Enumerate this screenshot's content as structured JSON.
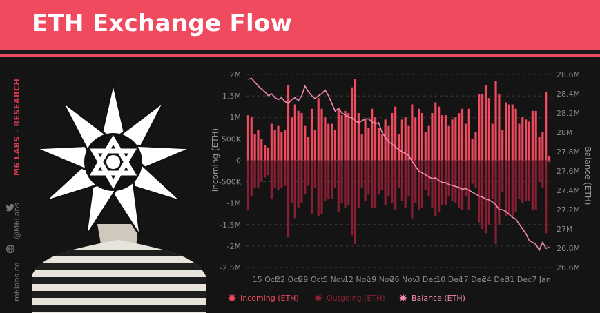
{
  "header": {
    "title": "ETH Exchange Flow"
  },
  "sidebar": {
    "brand": "M6 LABS - RESEARCH",
    "twitter_handle": "@M6Labs",
    "website": "m6labs.co"
  },
  "photo": {
    "icon": "star-mask-portrait"
  },
  "chart_data": {
    "type": "bar",
    "x_ticks": [
      "15 Oct",
      "22 Oct",
      "29 Oct",
      "5 Nov",
      "12 Nov",
      "19 Nov",
      "26 Nov",
      "3 Dec",
      "10 Dec",
      "17 Dec",
      "24 Dec",
      "31 Dec",
      "7 Jan"
    ],
    "y_left": {
      "title": "Incoming (ETH)",
      "min": -2500000,
      "max": 2000000,
      "ticks": [
        {
          "value": 2000000,
          "label": "2M"
        },
        {
          "value": 1500000,
          "label": "1.5M"
        },
        {
          "value": 1000000,
          "label": "1M"
        },
        {
          "value": 500000,
          "label": "500K"
        },
        {
          "value": 0,
          "label": "0"
        },
        {
          "value": -500000,
          "label": "-500K"
        },
        {
          "value": -1000000,
          "label": "-1M"
        },
        {
          "value": -1500000,
          "label": "-1.5M"
        },
        {
          "value": -2000000,
          "label": "-2M"
        },
        {
          "value": -2500000,
          "label": "-2.5M"
        }
      ]
    },
    "y_right": {
      "title": "Balance (ETH)",
      "min": 26600000,
      "max": 28600000,
      "ticks": [
        {
          "value": 28600000,
          "label": "28.6M"
        },
        {
          "value": 28400000,
          "label": "28.4M"
        },
        {
          "value": 28200000,
          "label": "28.2M"
        },
        {
          "value": 28000000,
          "label": "28M"
        },
        {
          "value": 27800000,
          "label": "27.8M"
        },
        {
          "value": 27600000,
          "label": "27.6M"
        },
        {
          "value": 27400000,
          "label": "27.4M"
        },
        {
          "value": 27200000,
          "label": "27.2M"
        },
        {
          "value": 27000000,
          "label": "27M"
        },
        {
          "value": 26800000,
          "label": "26.8M"
        },
        {
          "value": 26600000,
          "label": "26.6M"
        }
      ]
    },
    "grid": "horizontal-dashed",
    "legend_position": "bottom",
    "series": [
      {
        "name": "Incoming (ETH)",
        "color": "#f04a5f",
        "kind": "bar",
        "values": [
          1050000,
          1000000,
          600000,
          700000,
          500000,
          350000,
          300000,
          850000,
          700000,
          800000,
          650000,
          700000,
          1750000,
          1000000,
          1300000,
          1150000,
          1100000,
          800000,
          550000,
          1200000,
          700000,
          1450000,
          1200000,
          1000000,
          850000,
          850000,
          700000,
          1200000,
          1050000,
          1150000,
          1100000,
          1700000,
          1900000,
          1100000,
          600000,
          950000,
          750000,
          1200000,
          1000000,
          750000,
          600000,
          950000,
          800000,
          1100000,
          1250000,
          600000,
          950000,
          1000000,
          800000,
          1300000,
          1000000,
          1200000,
          1100000,
          650000,
          800000,
          1100000,
          1350000,
          1250000,
          1050000,
          1050000,
          800000,
          950000,
          1000000,
          1100000,
          1200000,
          850000,
          1200000,
          500000,
          650000,
          1550000,
          1550000,
          1750000,
          1450000,
          850000,
          1850000,
          1550000,
          700000,
          1350000,
          1300000,
          1300000,
          1200000,
          850000,
          1000000,
          950000,
          900000,
          1150000,
          1150000,
          550000,
          650000,
          1600000,
          100000
        ]
      },
      {
        "name": "Outgoing (ETH)",
        "color": "#8a1f33",
        "kind": "bar",
        "values": [
          -1150000,
          -850000,
          -650000,
          -650000,
          -500000,
          -400000,
          -350000,
          -900000,
          -650000,
          -700000,
          -650000,
          -600000,
          -1800000,
          -1000000,
          -1350000,
          -1100000,
          -1000000,
          -800000,
          -600000,
          -1250000,
          -650000,
          -1300000,
          -1250000,
          -950000,
          -900000,
          -900000,
          -650000,
          -1200000,
          -1000000,
          -1100000,
          -1050000,
          -1750000,
          -1950000,
          -1100000,
          -650000,
          -950000,
          -800000,
          -1100000,
          -1100000,
          -800000,
          -700000,
          -1050000,
          -850000,
          -1000000,
          -1150000,
          -650000,
          -950000,
          -1100000,
          -850000,
          -1350000,
          -1000000,
          -1150000,
          -1100000,
          -700000,
          -850000,
          -1100000,
          -1300000,
          -1200000,
          -1050000,
          -1050000,
          -850000,
          -950000,
          -1000000,
          -1100000,
          -1150000,
          -850000,
          -1150000,
          -550000,
          -650000,
          -1450000,
          -1600000,
          -1700000,
          -1500000,
          -900000,
          -1950000,
          -1500000,
          -750000,
          -1300000,
          -1250000,
          -1300000,
          -1200000,
          -900000,
          -1000000,
          -950000,
          -950000,
          -1150000,
          -1150000,
          -500000,
          -650000,
          -1700000,
          -50000
        ]
      },
      {
        "name": "Balance (ETH)",
        "color": "#f28bb0",
        "kind": "line",
        "values": [
          28550000,
          28560000,
          28520000,
          28480000,
          28450000,
          28420000,
          28380000,
          28400000,
          28360000,
          28340000,
          28360000,
          28320000,
          28300000,
          28340000,
          28360000,
          28330000,
          28380000,
          28480000,
          28420000,
          28380000,
          28350000,
          28380000,
          28400000,
          28440000,
          28380000,
          28300000,
          28220000,
          28250000,
          28200000,
          28180000,
          28160000,
          28150000,
          28120000,
          28100000,
          28120000,
          28140000,
          28140000,
          28110000,
          28090000,
          28100000,
          28000000,
          27950000,
          27900000,
          27880000,
          27850000,
          27820000,
          27800000,
          27780000,
          27760000,
          27700000,
          27650000,
          27600000,
          27580000,
          27560000,
          27540000,
          27520000,
          27530000,
          27500000,
          27480000,
          27480000,
          27460000,
          27450000,
          27440000,
          27430000,
          27410000,
          27420000,
          27400000,
          27380000,
          27360000,
          27340000,
          27330000,
          27310000,
          27300000,
          27280000,
          27250000,
          27200000,
          27200000,
          27180000,
          27150000,
          27120000,
          27100000,
          27050000,
          27000000,
          26950000,
          26880000,
          26860000,
          26840000,
          26780000,
          26860000,
          26800000,
          26810000
        ]
      }
    ]
  }
}
